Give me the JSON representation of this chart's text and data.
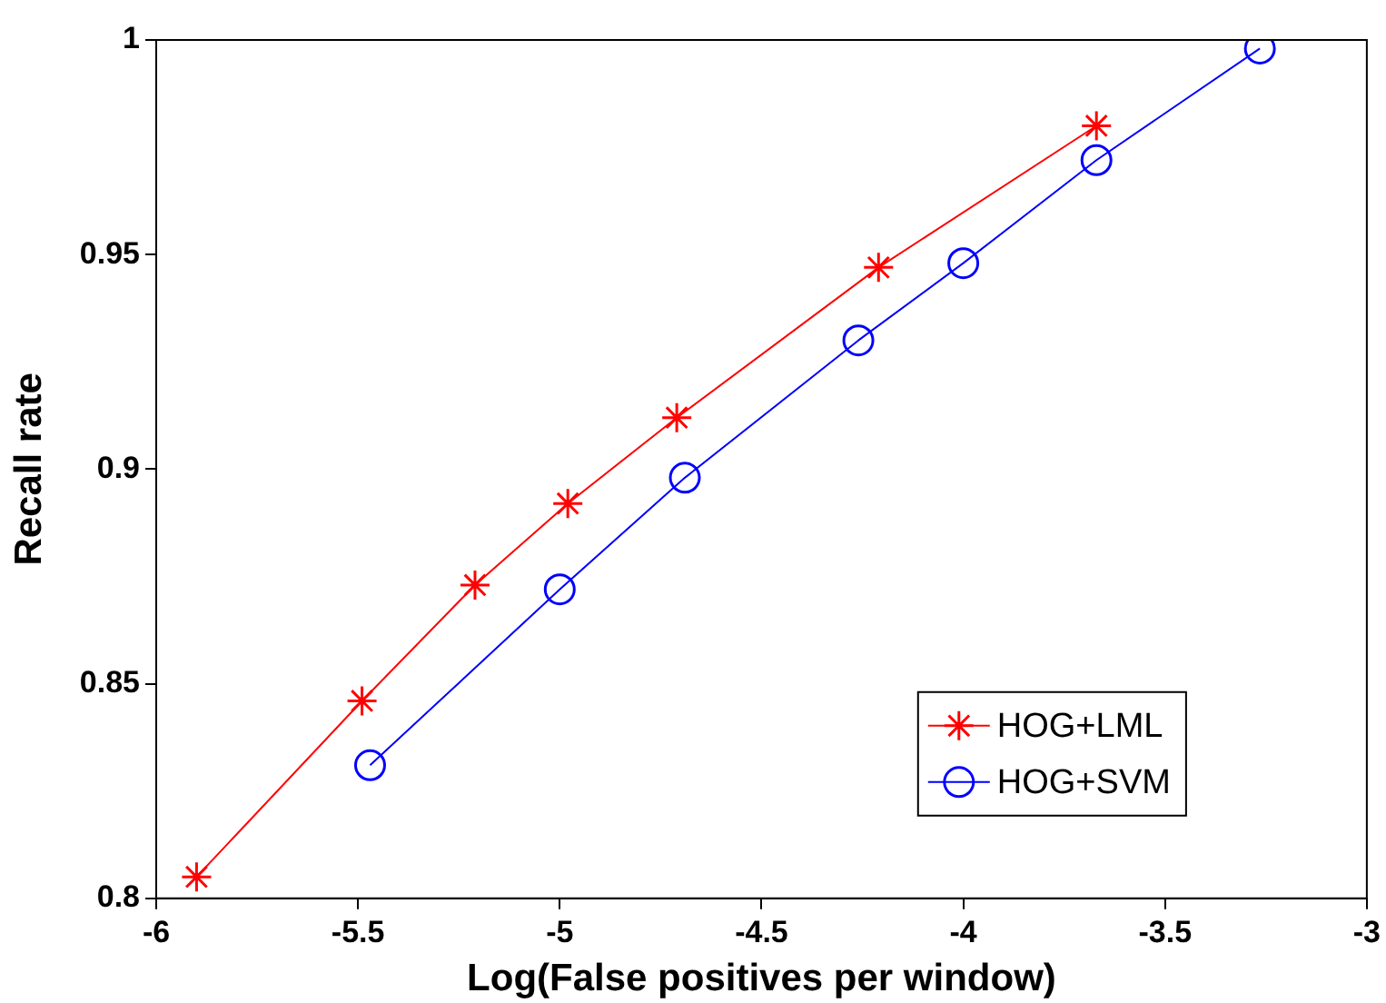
{
  "chart_data": {
    "type": "line",
    "xlabel": "Log(False positives per window)",
    "ylabel": "Recall rate",
    "xlim": [
      -6,
      -3
    ],
    "xticks": [
      -6,
      -5.5,
      -5,
      -4.5,
      -4,
      -3.5,
      -3
    ],
    "ylim": [
      0.8,
      1
    ],
    "yticks": [
      0.8,
      0.85,
      0.9,
      0.95,
      1
    ],
    "grid": false,
    "legend": "bottom right",
    "line_style": "solid",
    "series": [
      {
        "name": "HOG+LML",
        "color": "#ff0000",
        "marker": "cross",
        "x": [
          -5.9,
          -5.49,
          -5.21,
          -4.98,
          -4.71,
          -4.21,
          -3.67
        ],
        "values": [
          0.805,
          0.846,
          0.873,
          0.892,
          0.912,
          0.947,
          0.98
        ]
      },
      {
        "name": "HOG+SVM",
        "color": "#0000ff",
        "marker": "circle",
        "x": [
          -5.47,
          -5.0,
          -4.69,
          -4.26,
          -4.0,
          -3.67,
          -3.265
        ],
        "values": [
          0.831,
          0.872,
          0.898,
          0.93,
          0.948,
          0.972,
          0.998
        ]
      }
    ]
  }
}
